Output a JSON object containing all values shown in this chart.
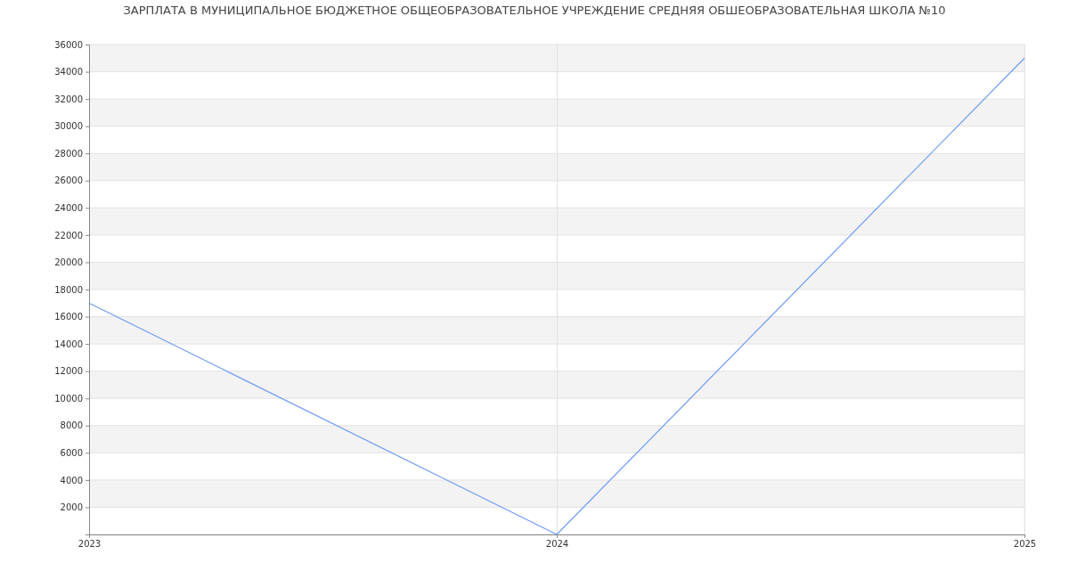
{
  "chart_data": {
    "type": "line",
    "title": "ЗАРПЛАТА В МУНИЦИПАЛЬНОЕ БЮДЖЕТНОЕ ОБЩЕОБРАЗОВАТЕЛЬНОЕ УЧРЕЖДЕНИЕ СРЕДНЯЯ ОБШЕОБРАЗОВАТЕЛЬНАЯ  ШКОЛА №10",
    "x": [
      2023,
      2024,
      2025
    ],
    "series": [
      {
        "color": "#6f9bf5",
        "values": [
          17000,
          0,
          35000
        ]
      }
    ],
    "xlim": [
      2023,
      2025
    ],
    "xticks": [
      2023,
      2024,
      2025
    ],
    "ylim": [
      0,
      36000
    ],
    "yticks": [
      {
        "value": 0,
        "label": null
      },
      2000,
      4000,
      6000,
      8000,
      10000,
      12000,
      14000,
      16000,
      18000,
      20000,
      22000,
      24000,
      26000,
      28000,
      30000,
      32000,
      34000,
      36000
    ],
    "grid": true,
    "marker": "none",
    "line_style": "solid"
  }
}
